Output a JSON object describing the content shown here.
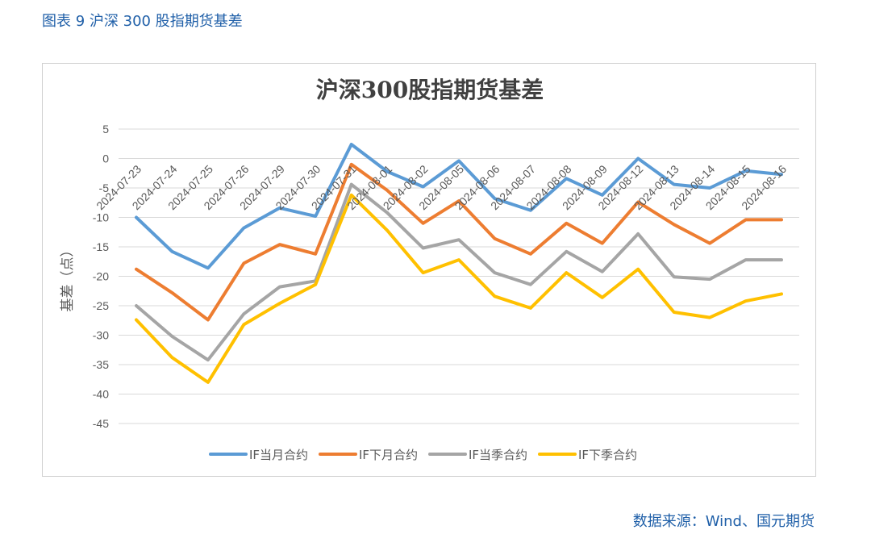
{
  "caption": "图表 9   沪深 300 股指期货基差",
  "source": "数据来源：Wind、国元期货",
  "colors": {
    "caption": "#1f5fa8",
    "grid": "#d9d9d9",
    "axis_text": "#595959",
    "title": "#404040"
  },
  "chart_data": {
    "type": "line",
    "title": "沪深300股指期货基差",
    "ylabel": "基差（点）",
    "xlabel": "",
    "ylim": [
      -45,
      5
    ],
    "yticks": [
      5,
      0,
      -5,
      -10,
      -15,
      -20,
      -25,
      -30,
      -35,
      -40,
      -45
    ],
    "grid": true,
    "legend_position": "bottom",
    "categories": [
      "2024-07-23",
      "2024-07-24",
      "2024-07-25",
      "2024-07-26",
      "2024-07-29",
      "2024-07-30",
      "2024-07-31",
      "2024-08-01",
      "2024-08-02",
      "2024-08-05",
      "2024-08-06",
      "2024-08-07",
      "2024-08-08",
      "2024-08-09",
      "2024-08-12",
      "2024-08-13",
      "2024-08-14",
      "2024-08-15",
      "2024-08-16"
    ],
    "series": [
      {
        "name": "IF当月合约",
        "color": "#5b9bd5",
        "values": [
          -10,
          -15.8,
          -18.6,
          -11.8,
          -8.4,
          -9.8,
          2.4,
          -2.2,
          -4.8,
          -0.4,
          -6.8,
          -8.8,
          -3.4,
          -6.2,
          0,
          -4.4,
          -5,
          -2.1,
          -2.7
        ]
      },
      {
        "name": "IF下月合约",
        "color": "#ed7d31",
        "values": [
          -18.8,
          -22.8,
          -27.4,
          -17.8,
          -14.6,
          -16.2,
          -1,
          -5.4,
          -11,
          -7.2,
          -13.6,
          -16.2,
          -11,
          -14.4,
          -7.4,
          -11.2,
          -14.4,
          -10.4,
          -10.4
        ]
      },
      {
        "name": "IF当季合约",
        "color": "#a5a5a5",
        "values": [
          -25,
          -30.2,
          -34.2,
          -26.4,
          -21.8,
          -20.8,
          -4.4,
          -9.2,
          -15.2,
          -13.8,
          -19.4,
          -21.4,
          -15.8,
          -19.2,
          -12.8,
          -20.1,
          -20.5,
          -17.2,
          -17.2
        ]
      },
      {
        "name": "IF下季合约",
        "color": "#ffc000",
        "values": [
          -27.4,
          -33.8,
          -38,
          -28.2,
          -24.6,
          -21.4,
          -6.2,
          -12.2,
          -19.4,
          -17.2,
          -23.4,
          -25.4,
          -19.4,
          -23.6,
          -18.8,
          -26.1,
          -27,
          -24.2,
          -23
        ]
      }
    ]
  }
}
